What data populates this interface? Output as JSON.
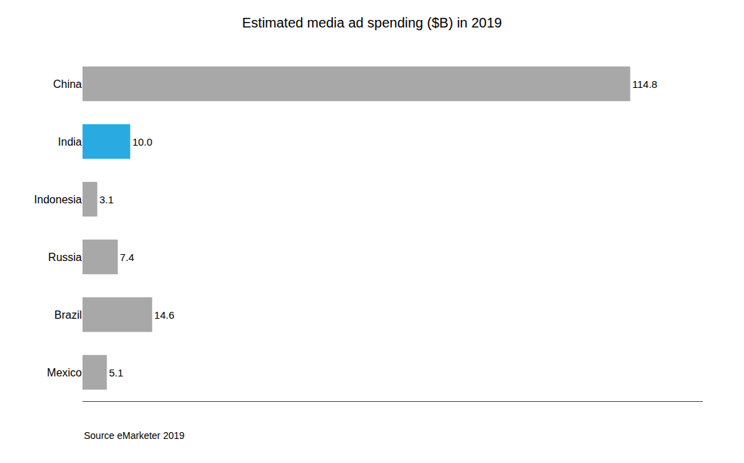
{
  "chart_data": {
    "type": "bar",
    "orientation": "horizontal",
    "title": "Estimated media ad spending ($B) in 2019",
    "annotations": [
      "Source eMarketer 2019"
    ],
    "categories": [
      "China",
      "India",
      "Indonesia",
      "Russia",
      "Brazil",
      "Mexico"
    ],
    "values": [
      114.8,
      10.0,
      3.1,
      7.4,
      14.6,
      5.1
    ],
    "value_labels": [
      "114.8",
      "10.0",
      "3.1",
      "7.4",
      "14.6",
      "5.1"
    ],
    "colors": [
      "#a8a8a8",
      "#29abe2",
      "#a8a8a8",
      "#a8a8a8",
      "#a8a8a8",
      "#a8a8a8"
    ],
    "xlim": [
      0,
      130
    ],
    "data_labels": true,
    "tick_labels": "y",
    "grid": false
  }
}
